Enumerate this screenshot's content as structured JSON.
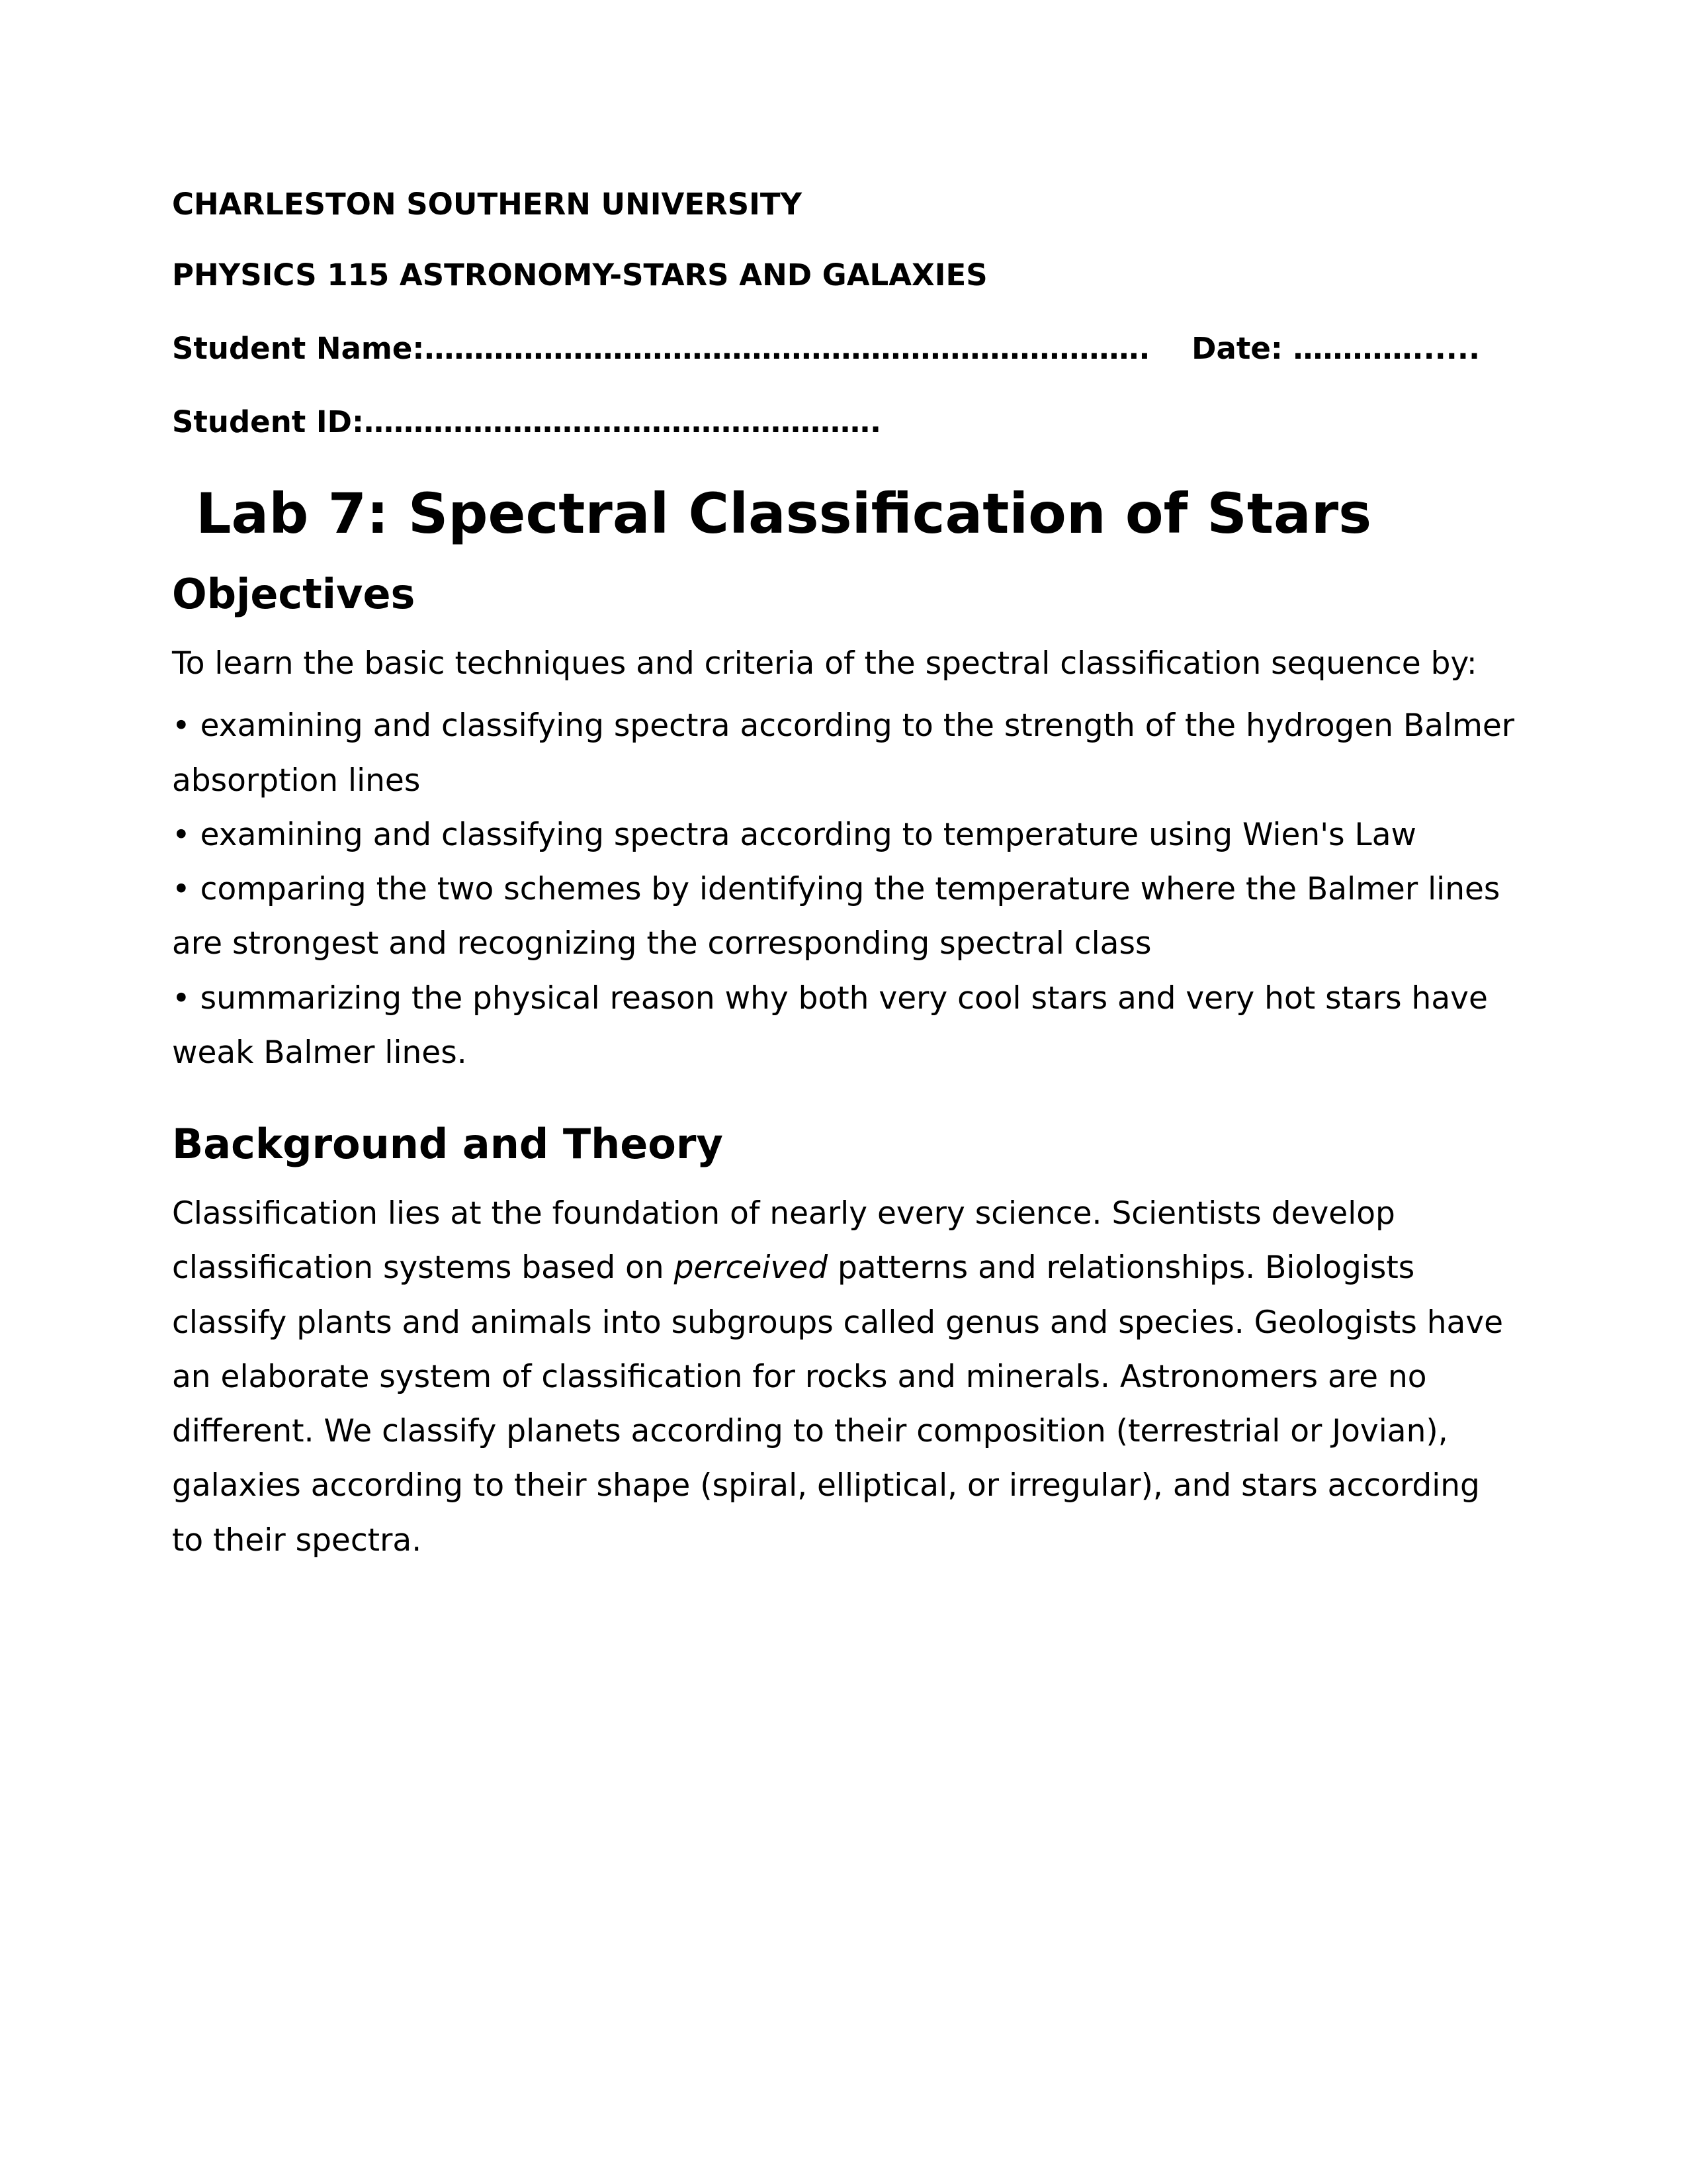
{
  "header": {
    "university": "CHARLESTON SOUTHERN UNIVERSITY",
    "course": "PHYSICS 115 ASTRONOMY-STARS AND GALAXIES",
    "student_name_label": "Student Name:……………………………………………………………….",
    "date_label": "Date: …………......",
    "student_id_label": "Student ID:……………………………………………."
  },
  "title": "Lab 7: Spectral Classification of Stars",
  "objectives": {
    "heading": "Objectives",
    "intro": "To learn the basic techniques and criteria of the spectral classification sequence by:",
    "bullets": [
      "• examining and classifying spectra according to the strength of the hydrogen Balmer absorption lines",
      "• examining and classifying spectra according to temperature using Wien's Law",
      "• comparing the two schemes by identifying the temperature where the Balmer lines are strongest and recognizing the corresponding spectral class",
      "• summarizing the physical reason why both very cool stars and very hot stars have weak Balmer lines."
    ]
  },
  "background": {
    "heading": "Background and Theory",
    "para_part1": "Classification lies at the foundation of nearly every science. Scientists develop classification systems based on ",
    "para_italic": "perceived",
    "para_part2": " patterns and relationships. Biologists classify plants and animals into subgroups called genus and species. Geologists have an elaborate system of classification for rocks and minerals. Astronomers are no different. We classify planets according to their composition (terrestrial or Jovian), galaxies according to their shape (spiral, elliptical, or irregular), and stars according to their spectra."
  }
}
